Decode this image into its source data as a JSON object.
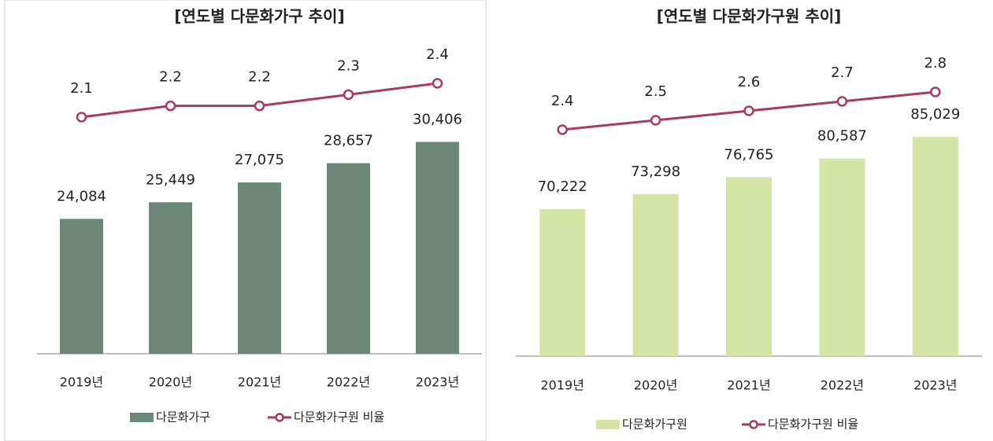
{
  "chart_data": [
    {
      "type": "bar_line",
      "title": "[연도별 다문화가구 추이]",
      "categories": [
        "2019년",
        "2020년",
        "2021년",
        "2022년",
        "2023년"
      ],
      "series": [
        {
          "name": "다문화가구",
          "color": "#6b8778",
          "values": [
            24084,
            25449,
            27075,
            28657,
            30406
          ],
          "value_labels": [
            "24,084",
            "25,449",
            "27,075",
            "28,657",
            "30,406"
          ]
        },
        {
          "name": "다문화가구원 비율",
          "color": "#a83a63",
          "axis": "y2",
          "values": [
            2.1,
            2.2,
            2.2,
            2.3,
            2.4
          ]
        }
      ],
      "ylim": [
        13000,
        38000
      ],
      "y2lim": [
        0,
        2.7
      ],
      "legend": "bottom"
    },
    {
      "type": "bar_line",
      "title": "[연도별 다문화가구원 추이]",
      "categories": [
        "2019년",
        "2020년",
        "2021년",
        "2022년",
        "2023년"
      ],
      "series": [
        {
          "name": "다문화가구원",
          "color": "#d3e4a5",
          "values": [
            70222,
            73298,
            76765,
            80587,
            85029
          ],
          "value_labels": [
            "70,222",
            "73,298",
            "76,765",
            "80,587",
            "85,029"
          ]
        },
        {
          "name": "다문화가구원 비율",
          "color": "#a83a63",
          "axis": "y2",
          "values": [
            2.4,
            2.5,
            2.6,
            2.7,
            2.8
          ]
        }
      ],
      "ylim": [
        40000,
        103000
      ],
      "y2lim": [
        0,
        3.25
      ],
      "legend": "bottom"
    }
  ]
}
